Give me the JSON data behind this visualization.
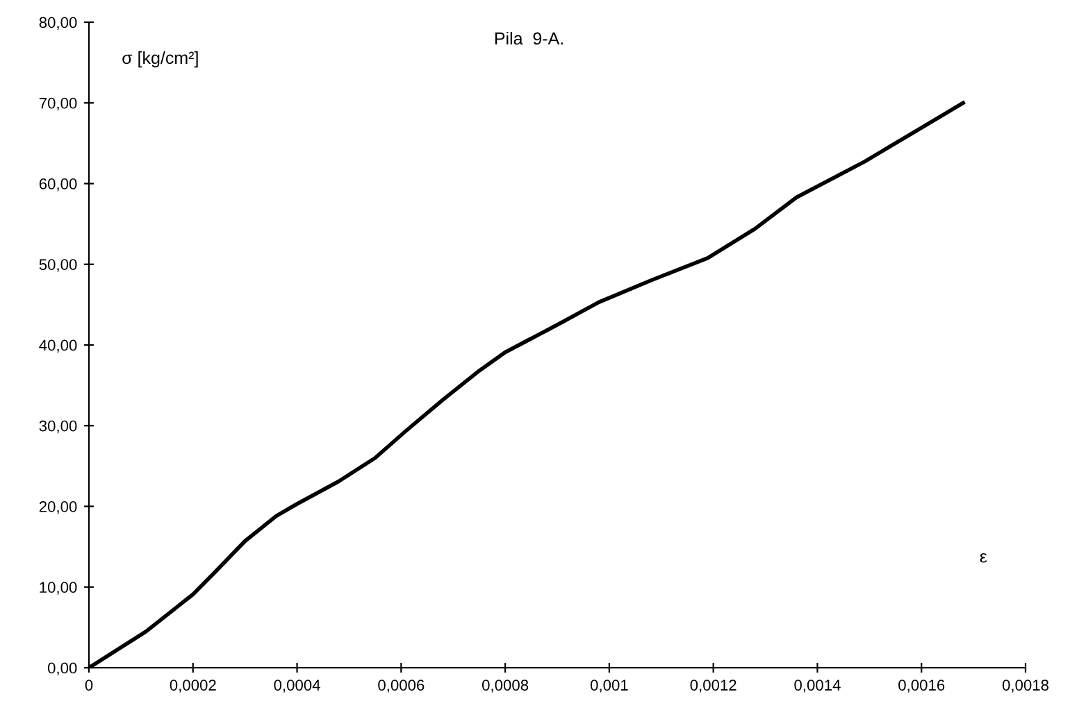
{
  "chart_data": {
    "type": "line",
    "title": "Pila  9-A.",
    "xlabel": "ε",
    "ylabel": "σ [kg/cm²]",
    "x": [
      0,
      0.00011,
      0.0002,
      0.00024,
      0.0003,
      0.00036,
      0.0004,
      0.00048,
      0.00055,
      0.00061,
      0.00068,
      0.00075,
      0.0008,
      0.0009,
      0.00098,
      0.00108,
      0.00119,
      0.00128,
      0.00136,
      0.00149,
      0.00161,
      0.00168
    ],
    "series": [
      {
        "color": "#000000",
        "values": [
          0,
          4.5,
          9.1,
          11.7,
          15.7,
          18.8,
          20.3,
          23.1,
          26,
          29.4,
          33.2,
          36.8,
          39.1,
          42.5,
          45.3,
          48,
          50.8,
          54.4,
          58.3,
          62.7,
          67.3,
          70
        ]
      }
    ],
    "xlim": [
      0,
      0.0018
    ],
    "ylim": [
      0,
      80
    ],
    "xticks": [
      0,
      {
        "value": 0.0002,
        "label": "0,0002"
      },
      {
        "value": 0.0004,
        "label": "0,0004"
      },
      {
        "value": 0.0006,
        "label": "0,0006"
      },
      {
        "value": 0.0008,
        "label": "0,0008"
      },
      {
        "value": 0.001,
        "label": "0,001"
      },
      {
        "value": 0.0012,
        "label": "0,0012"
      },
      {
        "value": 0.0014,
        "label": "0,0014"
      },
      {
        "value": 0.0016,
        "label": "0,0016"
      },
      {
        "value": 0.0018,
        "label": "0,0018"
      }
    ],
    "yticks": [
      {
        "value": 0,
        "label": "0,00"
      },
      {
        "value": 10,
        "label": "10,00"
      },
      {
        "value": 20,
        "label": "20,00"
      },
      {
        "value": 30,
        "label": "30,00"
      },
      {
        "value": 40,
        "label": "40,00"
      },
      {
        "value": 50,
        "label": "50,00"
      },
      {
        "value": 60,
        "label": "60,00"
      },
      {
        "value": 70,
        "label": "70,00"
      },
      {
        "value": 80,
        "label": "80,00"
      }
    ],
    "grid": false,
    "legend": false,
    "marker": "none",
    "line_style": "solid"
  }
}
